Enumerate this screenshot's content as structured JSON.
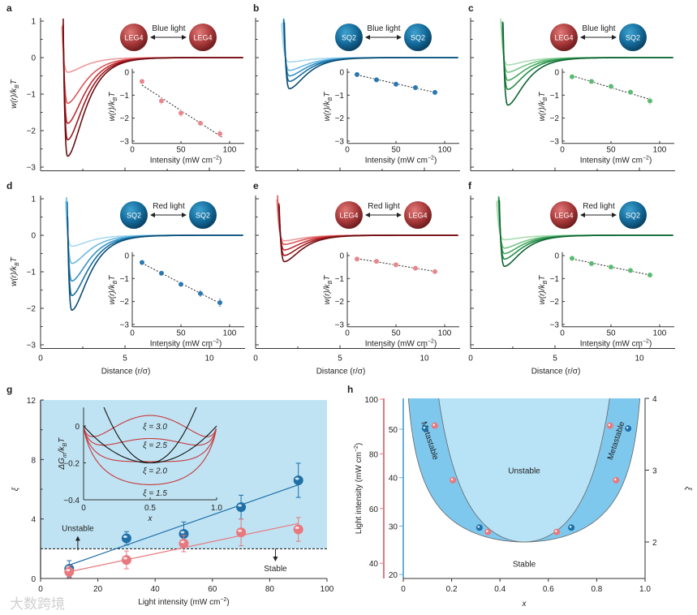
{
  "watermark": "大数跨境",
  "chart_data": [
    {
      "label": "a",
      "type": "line",
      "light": "Blue light",
      "left_particle": "LEG4",
      "right_particle": "LEG4",
      "family": "red",
      "point_color": "#e8868c",
      "ylabel": {
        "pre": "w(r)/k",
        "sub": "B",
        "post": "T"
      },
      "yticks": [
        1,
        0,
        -1,
        -2,
        -3
      ],
      "xticks": [
        0,
        5,
        10
      ],
      "xlabel": "",
      "well_depths": [
        0.4,
        1.25,
        1.8,
        2.25,
        2.7
      ],
      "inset": {
        "x": [
          10,
          30,
          50,
          70,
          90
        ],
        "y": [
          -0.4,
          -1.25,
          -1.78,
          -2.22,
          -2.68
        ],
        "err": [
          0.1,
          0.15,
          0.15,
          0.1,
          0.15
        ],
        "xticks": [
          0,
          50,
          100
        ],
        "yticks": [
          0,
          -1,
          -2,
          -3
        ],
        "xlabel": {
          "pre": "Intensity (mW cm",
          "sup": "−2",
          "post": ")"
        },
        "ylabel": {
          "pre": "w(r)/k",
          "sub": "B",
          "post": "T"
        }
      }
    },
    {
      "label": "b",
      "type": "line",
      "light": "Blue light",
      "left_particle": "SQ2",
      "right_particle": "SQ2",
      "family": "blue",
      "point_color": "#2a78b0",
      "ylabel": {
        "pre": "w(r)/k",
        "sub": "B",
        "post": "T"
      },
      "yticks": [
        1,
        0,
        -1,
        -2,
        -3
      ],
      "xticks": [
        0,
        5,
        10
      ],
      "xlabel": "",
      "well_depths": [
        0.12,
        0.35,
        0.5,
        0.65,
        0.85
      ],
      "inset": {
        "x": [
          10,
          30,
          50,
          70,
          90
        ],
        "y": [
          -0.1,
          -0.33,
          -0.52,
          -0.67,
          -0.88
        ],
        "err": [
          0.05,
          0.08,
          0.12,
          0.06,
          0.12
        ],
        "xticks": [
          0,
          50,
          100
        ],
        "yticks": [
          0,
          -1,
          -2,
          -3
        ],
        "xlabel": {
          "pre": "Intensity (mW cm",
          "sup": "−2",
          "post": ")"
        },
        "ylabel": {
          "pre": "w(r)/k",
          "sub": "B",
          "post": "T"
        }
      }
    },
    {
      "label": "c",
      "type": "line",
      "light": "Blue light",
      "left_particle": "LEG4",
      "right_particle": "SQ2",
      "family": "green",
      "point_color": "#5cba72",
      "ylabel": {
        "pre": "w(r)/k",
        "sub": "B",
        "post": "T"
      },
      "yticks": [
        1,
        0,
        -1,
        -2,
        -3
      ],
      "xticks": [
        0,
        5,
        10
      ],
      "xlabel": "",
      "well_depths": [
        0.2,
        0.4,
        0.62,
        0.87,
        1.3
      ],
      "inset": {
        "x": [
          10,
          30,
          50,
          70,
          90
        ],
        "y": [
          -0.2,
          -0.4,
          -0.62,
          -0.87,
          -1.25
        ],
        "err": [
          0.06,
          0.06,
          0.08,
          0.12,
          0.15
        ],
        "xticks": [
          0,
          50,
          100
        ],
        "yticks": [
          0,
          -1,
          -2,
          -3
        ],
        "xlabel": {
          "pre": "Intensity (mW cm",
          "sup": "−2",
          "post": ")"
        },
        "ylabel": {
          "pre": "w(r)/k",
          "sub": "B",
          "post": "T"
        }
      }
    },
    {
      "label": "d",
      "type": "line",
      "light": "Red light",
      "left_particle": "SQ2",
      "right_particle": "SQ2",
      "family": "blue",
      "point_color": "#2a78b0",
      "ylabel": {
        "pre": "w(r)/k",
        "sub": "B",
        "post": "T"
      },
      "yticks": [
        1,
        0,
        -1,
        -2,
        -3
      ],
      "xticks": [
        0,
        5,
        10
      ],
      "xlabel": "Distance (r/σ)",
      "well_depths": [
        0.3,
        0.77,
        1.25,
        1.65,
        2.05
      ],
      "inset": {
        "x": [
          10,
          30,
          50,
          70,
          90
        ],
        "y": [
          -0.3,
          -0.77,
          -1.25,
          -1.65,
          -2.05
        ],
        "err": [
          0.06,
          0.08,
          0.1,
          0.15,
          0.18
        ],
        "xticks": [
          0,
          50,
          100
        ],
        "yticks": [
          0,
          -1,
          -2,
          -3
        ],
        "xlabel": {
          "pre": "Intensity (mW cm",
          "sup": "−2",
          "post": ")"
        },
        "ylabel": {
          "pre": "w(r)/k",
          "sub": "B",
          "post": "T"
        }
      }
    },
    {
      "label": "e",
      "type": "line",
      "light": "Red light",
      "left_particle": "LEG4",
      "right_particle": "LEG4",
      "family": "red",
      "point_color": "#e8868c",
      "ylabel": {
        "pre": "w(r)/k",
        "sub": "B",
        "post": "T"
      },
      "yticks": [
        1,
        0,
        -1,
        -2,
        -3
      ],
      "xticks": [
        0,
        5,
        10
      ],
      "xlabel": "Distance (r/σ)",
      "well_depths": [
        0.15,
        0.25,
        0.4,
        0.55,
        0.72
      ],
      "inset": {
        "x": [
          10,
          30,
          50,
          70,
          90
        ],
        "y": [
          -0.15,
          -0.25,
          -0.4,
          -0.55,
          -0.7
        ],
        "err": [
          0.05,
          0.05,
          0.06,
          0.08,
          0.08
        ],
        "xticks": [
          0,
          50,
          100
        ],
        "yticks": [
          0,
          -1,
          -2,
          -3
        ],
        "xlabel": {
          "pre": "Intensity (mW cm",
          "sup": "−2",
          "post": ")"
        },
        "ylabel": {
          "pre": "w(r)/k",
          "sub": "B",
          "post": "T"
        }
      }
    },
    {
      "label": "f",
      "type": "line",
      "light": "Red light",
      "left_particle": "LEG4",
      "right_particle": "SQ2",
      "family": "green",
      "point_color": "#5cba72",
      "ylabel": {
        "pre": "w(r)/k",
        "sub": "B",
        "post": "T"
      },
      "yticks": [
        1,
        0,
        -1,
        -2,
        -3
      ],
      "xticks": [
        0,
        5,
        10
      ],
      "xlabel": "Distance (r/σ)",
      "well_depths": [
        0.12,
        0.35,
        0.5,
        0.65,
        0.85
      ],
      "inset": {
        "x": [
          10,
          30,
          50,
          70,
          90
        ],
        "y": [
          -0.12,
          -0.35,
          -0.5,
          -0.65,
          -0.85
        ],
        "err": [
          0.05,
          0.08,
          0.06,
          0.1,
          0.08
        ],
        "xticks": [
          0,
          50,
          100
        ],
        "yticks": [
          0,
          -1,
          -2,
          -3
        ],
        "xlabel": {
          "pre": "Intensity (mW cm",
          "sup": "−2",
          "post": ")"
        },
        "ylabel": {
          "pre": "w(r)/k",
          "sub": "B",
          "post": "T"
        }
      }
    },
    {
      "label": "g",
      "type": "scatter",
      "xlabel": {
        "pre": "Light intensity (mW cm",
        "sup": "−2",
        "post": ")"
      },
      "ylabel": "ξ",
      "xlim": [
        0,
        100
      ],
      "ylim": [
        0,
        12
      ],
      "xticks": [
        0,
        20,
        40,
        60,
        80,
        100
      ],
      "yticks": [
        0,
        4,
        8,
        12
      ],
      "threshold": 2,
      "unstable_label": "Unstable",
      "stable_label": "Stable",
      "shade_color": "#bfe3f3",
      "series": [
        {
          "name": "blue",
          "color": "#1f6fa8",
          "x": [
            10,
            30,
            50,
            70,
            90
          ],
          "y": [
            0.65,
            2.7,
            3.0,
            4.8,
            6.6
          ],
          "err": [
            0.55,
            0.45,
            0.8,
            0.8,
            1.15
          ],
          "fit": [
            [
              10,
              0.9
            ],
            [
              90,
              6.3
            ]
          ]
        },
        {
          "name": "red",
          "color": "#e8787e",
          "x": [
            10,
            30,
            50,
            70,
            90
          ],
          "y": [
            0.45,
            1.25,
            2.35,
            3.1,
            3.3
          ],
          "err": [
            0.4,
            0.6,
            0.55,
            0.9,
            0.8
          ],
          "fit": [
            [
              10,
              0.45
            ],
            [
              90,
              3.7
            ]
          ]
        }
      ],
      "inset": {
        "type": "line",
        "xlabel": "x",
        "ylabel": {
          "pre": "ΔG",
          "sub": "m",
          "post": "/k",
          "sub2": "B",
          "post2": "T"
        },
        "xticks": [
          0,
          0.5,
          1.0
        ],
        "yticks": [
          0,
          -0.2,
          -0.4
        ],
        "xlim": [
          0,
          1
        ],
        "ylim": [
          -0.4,
          0.1
        ],
        "xi_values": [
          3.0,
          2.5,
          2.0,
          1.5
        ],
        "xi_labels": [
          "ξ = 3.0",
          "ξ = 2.5",
          "ξ = 2.0",
          "ξ = 1.5"
        ],
        "parabola_curvatures": [
          0.8,
          2.5
        ],
        "parabola_min": [
          0.5,
          -0.2
        ]
      }
    },
    {
      "label": "h",
      "type": "area",
      "xlabel": "x",
      "xlim": [
        0,
        1
      ],
      "xticks": [
        0,
        0.2,
        0.4,
        0.6,
        0.8,
        1.0
      ],
      "left_ylabel": {
        "pre": "Light intensity (mW cm",
        "sup": "−2",
        "post": ")"
      },
      "red_axis_ticks": [
        100,
        80,
        60,
        40
      ],
      "blue_axis_ticks": [
        50,
        40,
        30,
        20
      ],
      "right_ylabel": "ξ",
      "right_ticks": [
        2,
        3,
        4
      ],
      "regions": {
        "unstable": "Unstable",
        "metastable": "Metastable",
        "stable": "Stable"
      },
      "colors": {
        "metastable": "#7ec8ee",
        "unstable": "#b8e2f5"
      },
      "blue_points": {
        "x": [
          0.09,
          0.315,
          0.695,
          0.93
        ],
        "xi": [
          3.58,
          2.2,
          2.2,
          3.58
        ]
      },
      "red_points": {
        "x": [
          0.13,
          0.205,
          0.35,
          0.635,
          0.855,
          0.88
        ],
        "xi": [
          3.62,
          2.86,
          2.14,
          2.14,
          3.62,
          2.86
        ]
      }
    }
  ]
}
